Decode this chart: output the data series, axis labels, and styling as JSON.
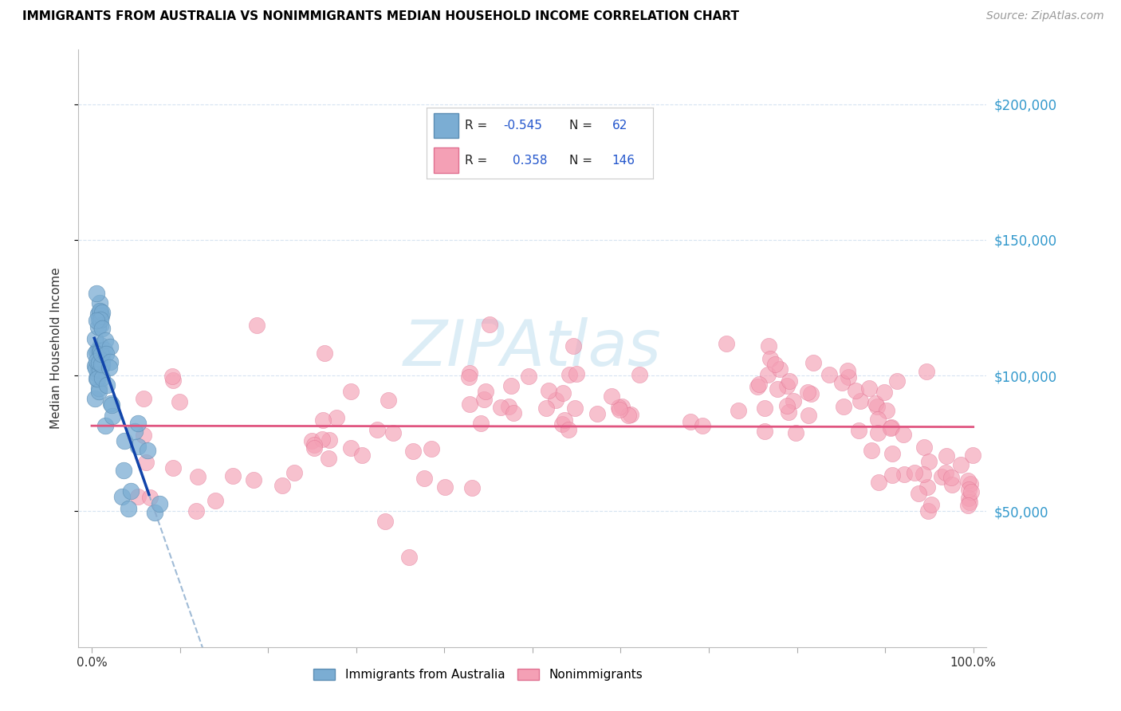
{
  "title": "IMMIGRANTS FROM AUSTRALIA VS NONIMMIGRANTS MEDIAN HOUSEHOLD INCOME CORRELATION CHART",
  "source": "Source: ZipAtlas.com",
  "ylabel": "Median Household Income",
  "ylim": [
    0,
    220000
  ],
  "ytick_values": [
    50000,
    100000,
    150000,
    200000
  ],
  "ytick_labels": [
    "$50,000",
    "$100,000",
    "$150,000",
    "$200,000"
  ],
  "legend_r1_label": "R = ",
  "legend_r1_val": "-0.545",
  "legend_n1_label": "N = ",
  "legend_n1_val": " 62",
  "legend_r2_label": "R =  ",
  "legend_r2_val": "0.358",
  "legend_n2_label": "N = ",
  "legend_n2_val": "146",
  "blue_color": "#7BADD3",
  "blue_edge": "#5B8DB3",
  "pink_color": "#F4A0B5",
  "pink_edge": "#E07090",
  "line_blue_color": "#1144AA",
  "line_blue_dash": "#88AACC",
  "line_pink_color": "#E05580",
  "watermark": "ZIPAtlas",
  "title_fontsize": 11,
  "source_fontsize": 10
}
